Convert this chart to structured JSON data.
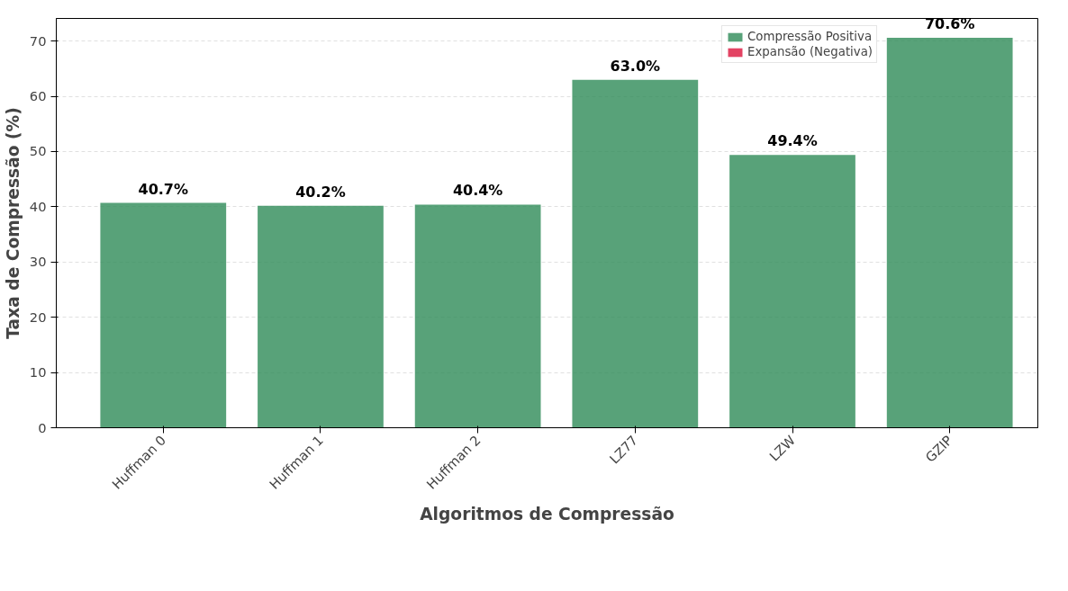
{
  "chart_data": {
    "type": "bar",
    "xlabel": "Algoritmos de Compressão",
    "ylabel": "Taxa de Compressão (%)",
    "categories": [
      "Huffman 0",
      "Huffman 1",
      "Huffman 2",
      "LZ77",
      "LZW",
      "GZIP"
    ],
    "series": [
      {
        "name": "Compressão Positiva",
        "color": "#2e8b57",
        "values": [
          40.7,
          40.2,
          40.4,
          63.0,
          49.4,
          70.6
        ],
        "value_labels": [
          "40.7%",
          "40.2%",
          "40.4%",
          "63.0%",
          "49.4%",
          "70.6%"
        ]
      },
      {
        "name": "Expansão (Negativa)",
        "color": "#dc143c",
        "values": [
          null,
          null,
          null,
          null,
          null,
          null
        ]
      }
    ],
    "data_labels": true,
    "ylim": [
      0,
      74.1
    ],
    "yticks": [
      0,
      10,
      20,
      30,
      40,
      50,
      60,
      70
    ],
    "grid": "y",
    "legend": "top right"
  }
}
